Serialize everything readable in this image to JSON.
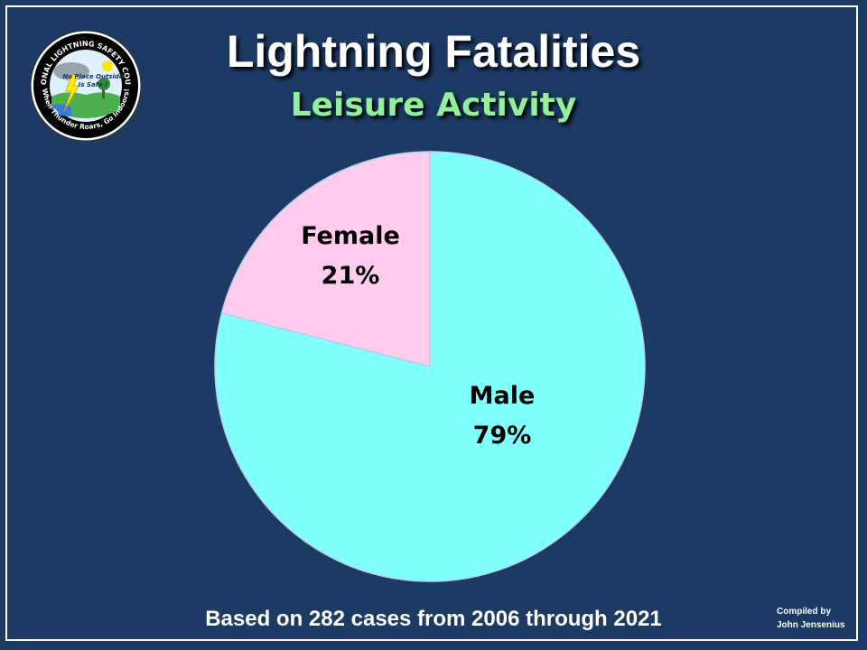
{
  "title": "Lightning Fatalities",
  "subtitle": "Leisure Activity",
  "logo": {
    "text_top": "NATIONAL LIGHTNING SAFETY COUNCIL",
    "text_bottom": "When Thunder Roars, Go Indoors!",
    "text_center_1": "No Place Outside",
    "text_center_2": "Is Safe !"
  },
  "chart_data": {
    "type": "pie",
    "slices": [
      {
        "name": "Male",
        "value": 79,
        "label": "79%",
        "color": "#80ffff"
      },
      {
        "name": "Female",
        "value": 21,
        "label": "21%",
        "color": "#ffccee"
      }
    ],
    "title": "Lightning Fatalities",
    "subtitle": "Leisure Activity"
  },
  "footer": "Based on 282 cases from 2006 through 2021",
  "credit": {
    "line1": "Compiled by",
    "line2": "John Jensenius"
  },
  "colors": {
    "background": "#1b3a64",
    "title": "#ffffff",
    "subtitle": "#92f09a"
  }
}
